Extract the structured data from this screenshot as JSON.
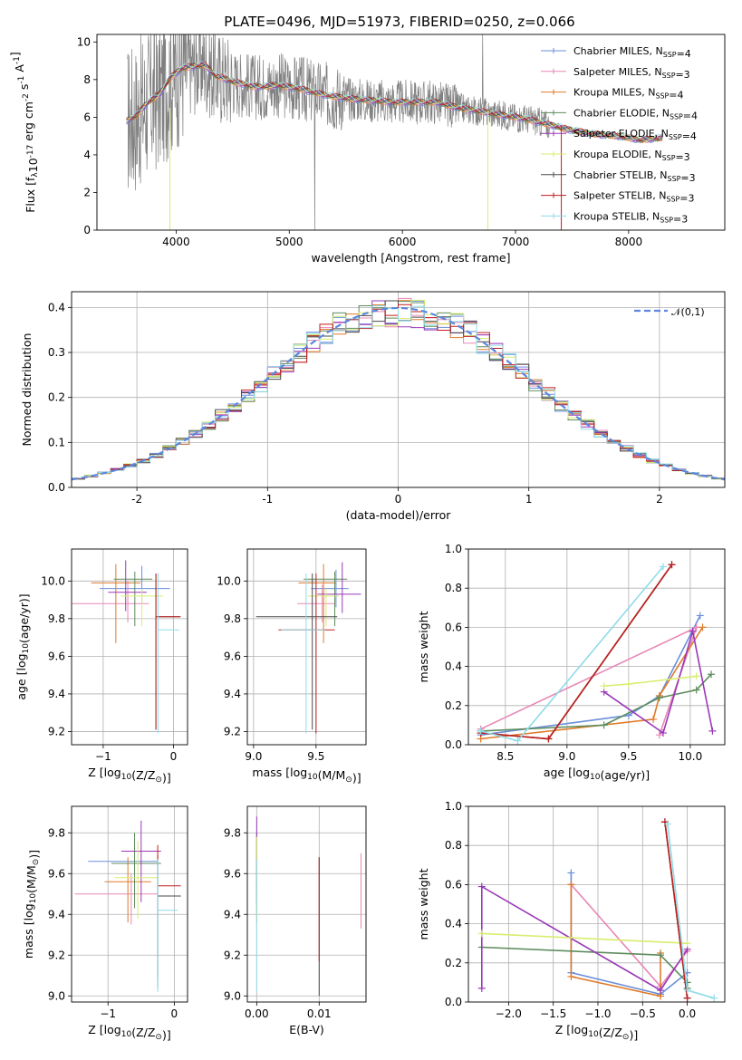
{
  "figure_title": "PLATE=0496, MJD=51973, FIBERID=0250, z=0.066",
  "colors": {
    "data": "#808080",
    "series": [
      "#6a8fdc",
      "#e788b5",
      "#e07b2a",
      "#5e8c5c",
      "#9a38b8",
      "#d7ee6f",
      "#4a4a4a",
      "#c21d1d",
      "#8fdce8"
    ],
    "normal_curve": "#5b87dc"
  },
  "series_names": [
    "Chabrier MILES, N$_{SSP}$=4",
    "Salpeter MILES, N$_{SSP}$=3",
    "Kroupa MILES, N$_{SSP}$=4",
    "Chabrier ELODIE, N$_{SSP}$=4",
    "Salpeter ELODIE, N$_{SSP}$=4",
    "Kroupa ELODIE, N$_{SSP}$=3",
    "Chabrier STELIB, N$_{SSP}$=3",
    "Salpeter STELIB, N$_{SSP}$=3",
    "Kroupa STELIB, N$_{SSP}$=3"
  ],
  "chart_data": [
    {
      "id": "spectrum",
      "type": "line",
      "title": "PLATE=0496, MJD=51973, FIBERID=0250, z=0.066",
      "xlabel": "wavelength [Angstrom, rest frame]",
      "ylabel": "Flux [f$_\\lambda$10$^{-17}$ erg cm$^{-2}$ s$^{-1}$ A$^{-1}$]",
      "xlim": [
        3300,
        8850
      ],
      "ylim": [
        0,
        10.4
      ],
      "xticks": [
        4000,
        5000,
        6000,
        7000,
        8000
      ],
      "yticks": [
        0,
        2,
        4,
        6,
        8,
        10
      ],
      "legend": "top-right",
      "data_trace": "noisy spectrum from 3570 to 8300 Angstrom",
      "model_continuum": [
        [
          3560,
          5.8
        ],
        [
          3650,
          6.1
        ],
        [
          3750,
          6.8
        ],
        [
          3850,
          7.2
        ],
        [
          3950,
          8.1
        ],
        [
          4050,
          8.6
        ],
        [
          4150,
          8.7
        ],
        [
          4250,
          8.8
        ],
        [
          4350,
          8.2
        ],
        [
          4500,
          7.9
        ],
        [
          4700,
          7.6
        ],
        [
          4900,
          7.7
        ],
        [
          5100,
          7.5
        ],
        [
          5300,
          7.2
        ],
        [
          5500,
          7.0
        ],
        [
          5700,
          6.9
        ],
        [
          5900,
          6.8
        ],
        [
          6100,
          6.8
        ],
        [
          6300,
          6.8
        ],
        [
          6500,
          6.5
        ],
        [
          6700,
          6.3
        ],
        [
          6900,
          6.1
        ],
        [
          7100,
          5.9
        ],
        [
          7300,
          5.6
        ],
        [
          7500,
          5.3
        ],
        [
          7700,
          5.1
        ],
        [
          7900,
          5.0
        ],
        [
          8100,
          4.8
        ],
        [
          8300,
          4.9
        ]
      ]
    },
    {
      "id": "residuals",
      "type": "histogram",
      "xlabel": "(data-model)/error",
      "ylabel": "Normed distribution",
      "xlim": [
        -2.5,
        2.5
      ],
      "ylim": [
        0,
        0.435
      ],
      "xticks": [
        -2,
        -1,
        0,
        1,
        2
      ],
      "yticks": [
        0.0,
        0.1,
        0.2,
        0.3,
        0.4
      ],
      "legend": "top-right",
      "legend_label": "$\\mathcal{N}(0,1)$",
      "bin_width": 0.1,
      "note": "histograms of nine models follow the standard normal curve"
    },
    {
      "id": "age_vs_Z",
      "type": "scatter",
      "xlabel": "Z [log$_{10}$(Z/Z$_\\odot$)]",
      "ylabel": "age  [log$_{10}$(age/yr)]",
      "xlim": [
        -1.45,
        0.2
      ],
      "ylim": [
        9.13,
        10.17
      ],
      "xticks": [
        -1,
        0
      ],
      "yticks": [
        9.2,
        9.4,
        9.6,
        9.8,
        10.0
      ],
      "points": [
        {
          "x": -0.45,
          "y": 9.96,
          "xerr": [
            0.6,
            0.4
          ],
          "yerr": [
            0.08,
            0.12
          ]
        },
        {
          "x": -0.65,
          "y": 9.88,
          "xerr": [
            0.8,
            0.3
          ],
          "yerr": [
            0.1,
            0.12
          ]
        },
        {
          "x": -0.82,
          "y": 9.99,
          "xerr": [
            0.35,
            0.35
          ],
          "yerr": [
            0.32,
            0.1
          ]
        },
        {
          "x": -0.55,
          "y": 10.01,
          "xerr": [
            0.3,
            0.25
          ],
          "yerr": [
            0.25,
            0.04
          ]
        },
        {
          "x": -0.68,
          "y": 9.94,
          "xerr": [
            0.25,
            0.3
          ],
          "yerr": [
            0.1,
            0.17
          ]
        },
        {
          "x": -0.45,
          "y": 9.92,
          "xerr": [
            0.3,
            0.3
          ],
          "yerr": [
            0.16,
            0.04
          ]
        },
        {
          "x": -0.25,
          "y": 9.81,
          "xerr": [
            0.0,
            0.35
          ],
          "yerr": [
            0.6,
            0.23
          ]
        },
        {
          "x": -0.25,
          "y": 9.81,
          "xerr": [
            0.0,
            0.35
          ],
          "yerr": [
            0.6,
            0.23
          ]
        },
        {
          "x": -0.22,
          "y": 9.74,
          "xerr": [
            0.0,
            0.3
          ],
          "yerr": [
            0.55,
            0.3
          ]
        }
      ]
    },
    {
      "id": "age_vs_mass",
      "type": "scatter",
      "xlabel": "mass [log$_{10}$(M/M$_\\odot$)]",
      "ylabel": "",
      "xlim": [
        8.95,
        9.9
      ],
      "ylim": [
        9.13,
        10.17
      ],
      "xticks": [
        9.0,
        9.5
      ],
      "yticks": [
        9.2,
        9.4,
        9.6,
        9.8,
        10.0
      ],
      "points": [
        {
          "x": 9.66,
          "y": 9.96,
          "xerr": [
            0.2,
            0.1
          ],
          "yerr": [
            0.1,
            0.1
          ]
        },
        {
          "x": 9.55,
          "y": 9.88,
          "xerr": [
            0.2,
            0.1
          ],
          "yerr": [
            0.1,
            0.1
          ]
        },
        {
          "x": 9.56,
          "y": 9.99,
          "xerr": [
            0.2,
            0.1
          ],
          "yerr": [
            0.32,
            0.1
          ]
        },
        {
          "x": 9.65,
          "y": 10.01,
          "xerr": [
            0.25,
            0.1
          ],
          "yerr": [
            0.25,
            0.04
          ]
        },
        {
          "x": 9.71,
          "y": 9.93,
          "xerr": [
            0.2,
            0.15
          ],
          "yerr": [
            0.1,
            0.17
          ]
        },
        {
          "x": 9.58,
          "y": 9.92,
          "xerr": [
            0.15,
            0.1
          ],
          "yerr": [
            0.16,
            0.04
          ]
        },
        {
          "x": 9.47,
          "y": 9.81,
          "xerr": [
            0.45,
            0.2
          ],
          "yerr": [
            0.6,
            0.23
          ]
        },
        {
          "x": 9.5,
          "y": 9.74,
          "xerr": [
            0.3,
            0.15
          ],
          "yerr": [
            0.55,
            0.3
          ]
        },
        {
          "x": 9.42,
          "y": 9.74,
          "xerr": [
            0.2,
            0.15
          ],
          "yerr": [
            0.55,
            0.3
          ]
        }
      ]
    },
    {
      "id": "weight_vs_age",
      "type": "line",
      "xlabel": "age  [log$_{10}$(age/yr)]",
      "ylabel": "mass weight",
      "xlim": [
        8.2,
        10.28
      ],
      "ylim": [
        0,
        1
      ],
      "xticks": [
        8.5,
        9.0,
        9.5,
        10.0
      ],
      "yticks": [
        0.0,
        0.2,
        0.4,
        0.6,
        0.8,
        1.0
      ],
      "series": [
        {
          "values": [
            [
              8.3,
              0.05
            ],
            [
              9.5,
              0.15
            ],
            [
              9.75,
              0.25
            ],
            [
              10.08,
              0.66
            ]
          ]
        },
        {
          "values": [
            [
              8.3,
              0.08
            ],
            [
              10.05,
              0.6
            ],
            [
              9.75,
              0.05
            ]
          ]
        },
        {
          "values": [
            [
              8.3,
              0.03
            ],
            [
              9.7,
              0.13
            ],
            [
              9.75,
              0.25
            ],
            [
              10.1,
              0.6
            ]
          ]
        },
        {
          "values": [
            [
              8.3,
              0.07
            ],
            [
              9.3,
              0.1
            ],
            [
              9.75,
              0.24
            ],
            [
              10.05,
              0.28
            ],
            [
              10.17,
              0.36
            ]
          ]
        },
        {
          "values": [
            [
              9.3,
              0.27
            ],
            [
              9.78,
              0.06
            ],
            [
              10.02,
              0.58
            ],
            [
              10.18,
              0.07
            ]
          ]
        },
        {
          "values": [
            [
              9.3,
              0.3
            ],
            [
              9.5,
              0.31
            ],
            [
              10.05,
              0.35
            ]
          ]
        },
        {
          "values": [
            [
              8.3,
              0.06
            ],
            [
              8.85,
              0.03
            ],
            [
              9.85,
              0.92
            ]
          ]
        },
        {
          "values": [
            [
              8.3,
              0.06
            ],
            [
              8.85,
              0.03
            ],
            [
              9.85,
              0.92
            ]
          ]
        },
        {
          "values": [
            [
              8.3,
              0.07
            ],
            [
              8.6,
              0.02
            ],
            [
              9.78,
              0.91
            ]
          ]
        }
      ]
    },
    {
      "id": "mass_vs_Z",
      "type": "scatter",
      "xlabel": "Z [log$_{10}$(Z/Z$_\\odot$)]",
      "ylabel": "mass [log$_{10}$(M/M$_\\odot$)]",
      "xlim": [
        -1.55,
        0.2
      ],
      "ylim": [
        8.97,
        9.93
      ],
      "xticks": [
        -1,
        0
      ],
      "yticks": [
        9.0,
        9.2,
        9.4,
        9.6,
        9.8
      ],
      "points": [
        {
          "x": -0.6,
          "y": 9.66,
          "xerr": [
            0.7,
            0.35
          ],
          "yerr": [
            0.15,
            0.1
          ]
        },
        {
          "x": -0.65,
          "y": 9.5,
          "xerr": [
            0.85,
            0.4
          ],
          "yerr": [
            0.15,
            0.1
          ]
        },
        {
          "x": -0.7,
          "y": 9.56,
          "xerr": [
            0.35,
            0.35
          ],
          "yerr": [
            0.2,
            0.12
          ]
        },
        {
          "x": -0.6,
          "y": 9.65,
          "xerr": [
            0.35,
            0.4
          ],
          "yerr": [
            0.22,
            0.15
          ]
        },
        {
          "x": -0.5,
          "y": 9.71,
          "xerr": [
            0.3,
            0.3
          ],
          "yerr": [
            0.25,
            0.15
          ]
        },
        {
          "x": -0.55,
          "y": 9.58,
          "xerr": [
            0.35,
            0.3
          ],
          "yerr": [
            0.2,
            0.18
          ]
        },
        {
          "x": -0.25,
          "y": 9.49,
          "xerr": [
            0.0,
            0.35
          ],
          "yerr": [
            0.45,
            0.2
          ]
        },
        {
          "x": -0.25,
          "y": 9.54,
          "xerr": [
            0.0,
            0.35
          ],
          "yerr": [
            0.45,
            0.2
          ]
        },
        {
          "x": -0.25,
          "y": 9.42,
          "xerr": [
            0.0,
            0.3
          ],
          "yerr": [
            0.4,
            0.25
          ]
        }
      ]
    },
    {
      "id": "mass_vs_ebv",
      "type": "scatter",
      "xlabel": "E(B-V)",
      "ylabel": "",
      "xlim": [
        -0.0015,
        0.0175
      ],
      "ylim": [
        8.97,
        9.93
      ],
      "xticks": [
        0.0,
        0.01
      ],
      "yticks": [
        9.0,
        9.2,
        9.4,
        9.6,
        9.8
      ],
      "points": [
        {
          "x": 0.0,
          "y": 9.66,
          "yerr": [
            0.15,
            0.1
          ]
        },
        {
          "x": 0.0167,
          "y": 9.5,
          "yerr": [
            0.17,
            0.2
          ]
        },
        {
          "x": 0.0,
          "y": 9.56,
          "yerr": [
            0.2,
            0.12
          ]
        },
        {
          "x": 0.0,
          "y": 9.65,
          "yerr": [
            0.22,
            0.15
          ]
        },
        {
          "x": 0.0,
          "y": 9.71,
          "yerr": [
            0.25,
            0.17
          ]
        },
        {
          "x": 0.0,
          "y": 9.58,
          "yerr": [
            0.2,
            0.2
          ]
        },
        {
          "x": 0.01,
          "y": 9.35,
          "yerr": [
            0.35,
            0.33
          ]
        },
        {
          "x": 0.01,
          "y": 9.45,
          "yerr": [
            0.28,
            0.23
          ]
        },
        {
          "x": 0.0,
          "y": 9.42,
          "yerr": [
            0.4,
            0.25
          ]
        }
      ]
    },
    {
      "id": "weight_vs_Z",
      "type": "line",
      "xlabel": "Z [log$_{10}$(Z/Z$_\\odot$)]",
      "ylabel": "mass weight",
      "xlim": [
        -2.45,
        0.42
      ],
      "ylim": [
        0,
        1
      ],
      "xticks": [
        -2.0,
        -1.5,
        -1.0,
        -0.5,
        0.0
      ],
      "yticks": [
        0.0,
        0.2,
        0.4,
        0.6,
        0.8,
        1.0
      ],
      "series": [
        {
          "values": [
            [
              -1.3,
              0.66
            ],
            [
              -1.3,
              0.15
            ],
            [
              -0.3,
              0.04
            ],
            [
              0.0,
              0.15
            ]
          ]
        },
        {
          "values": [
            [
              -1.3,
              0.6
            ],
            [
              -0.3,
              0.08
            ],
            [
              0.0,
              0.26
            ]
          ]
        },
        {
          "values": [
            [
              -1.3,
              0.6
            ],
            [
              -1.3,
              0.13
            ],
            [
              -0.3,
              0.03
            ],
            [
              -0.3,
              0.25
            ]
          ]
        },
        {
          "values": [
            [
              -2.3,
              0.28
            ],
            [
              -0.3,
              0.24
            ],
            [
              0.0,
              0.1
            ],
            [
              0.0,
              0.07
            ]
          ]
        },
        {
          "values": [
            [
              -2.3,
              0.07
            ],
            [
              -2.3,
              0.59
            ],
            [
              -0.3,
              0.06
            ],
            [
              0.0,
              0.27
            ]
          ]
        },
        {
          "values": [
            [
              -2.3,
              0.35
            ],
            [
              0.0,
              0.3
            ]
          ]
        },
        {
          "values": [
            [
              -0.25,
              0.92
            ],
            [
              0.0,
              0.02
            ]
          ]
        },
        {
          "values": [
            [
              -0.25,
              0.92
            ],
            [
              0.0,
              0.02
            ]
          ]
        },
        {
          "values": [
            [
              -0.22,
              0.91
            ],
            [
              0.0,
              0.06
            ],
            [
              0.3,
              0.02
            ]
          ]
        }
      ]
    }
  ]
}
